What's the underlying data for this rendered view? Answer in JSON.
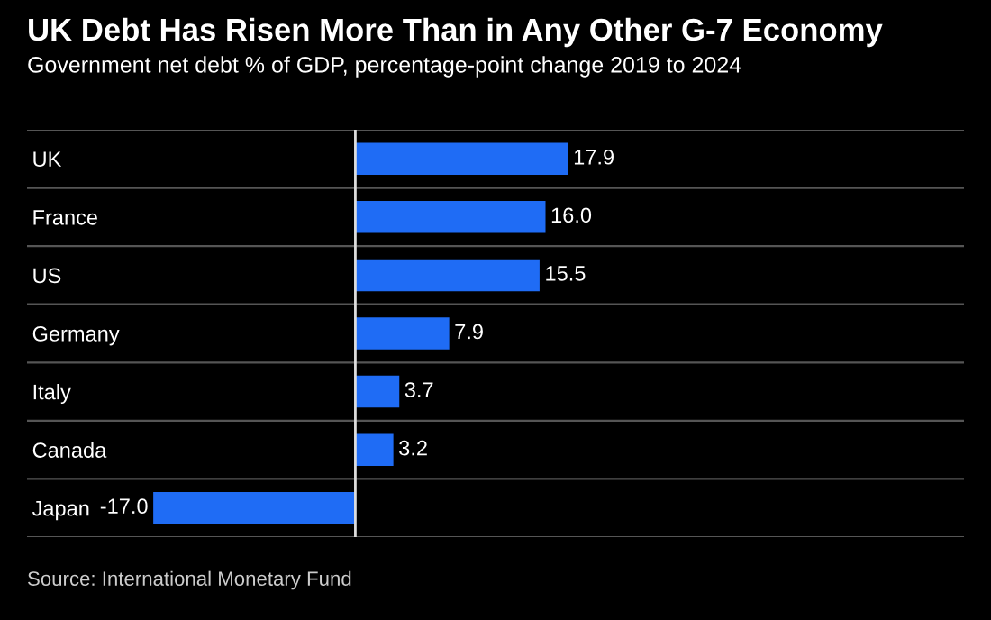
{
  "chart_data": {
    "type": "bar",
    "orientation": "horizontal",
    "title": "UK Debt Has Risen More Than in Any Other G-7 Economy",
    "subtitle": "Government net debt % of GDP, percentage-point change 2019 to 2024",
    "categories": [
      "UK",
      "France",
      "US",
      "Germany",
      "Italy",
      "Canada",
      "Japan"
    ],
    "values": [
      17.9,
      16.0,
      15.5,
      7.9,
      3.7,
      3.2,
      -17.0
    ],
    "value_labels": [
      "17.9",
      "16.0",
      "15.5",
      "7.9",
      "3.7",
      "3.2",
      "-17.0"
    ],
    "color": "#1f6cf5",
    "grid": "y",
    "annotations": [
      "Source: International Monetary Fund"
    ]
  }
}
